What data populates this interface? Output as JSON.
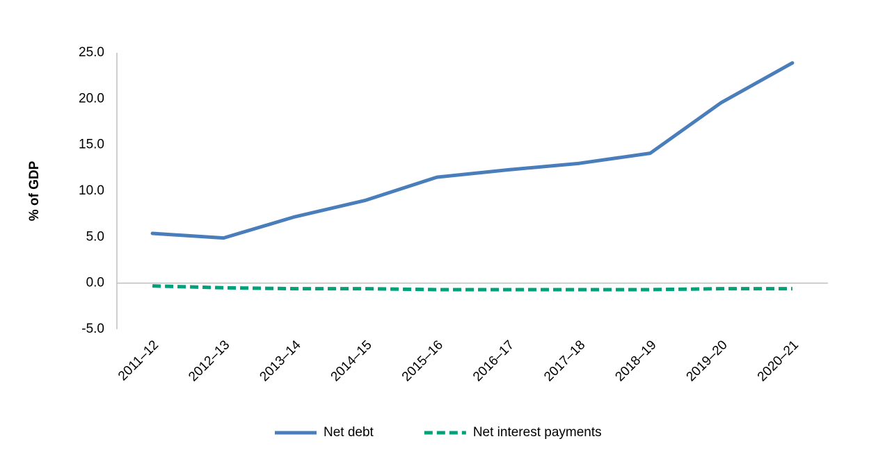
{
  "chart_data": {
    "type": "line",
    "y_label": "% of GDP",
    "categories": [
      "2011–12",
      "2012–13",
      "2013–14",
      "2014–15",
      "2015–16",
      "2016–17",
      "2017–18",
      "2018–19",
      "2019–20",
      "2020–21"
    ],
    "series": [
      {
        "name": "Net debt",
        "color": "#4a7ebb",
        "dash": false,
        "values": [
          5.4,
          4.9,
          7.2,
          9.0,
          11.5,
          12.3,
          13.0,
          14.1,
          19.6,
          23.9
        ]
      },
      {
        "name": "Net interest payments",
        "color": "#00a07a",
        "dash": true,
        "values": [
          -0.3,
          -0.5,
          -0.6,
          -0.6,
          -0.7,
          -0.7,
          -0.7,
          -0.7,
          -0.6,
          -0.6
        ]
      }
    ],
    "ylim": [
      -5,
      25
    ],
    "yticks": [
      {
        "value": -5,
        "label": "-5.0"
      },
      {
        "value": 0,
        "label": "0.0"
      },
      {
        "value": 5,
        "label": "5.0"
      },
      {
        "value": 10,
        "label": "10.0"
      },
      {
        "value": 15,
        "label": "15.0"
      },
      {
        "value": 20,
        "label": "20.0"
      },
      {
        "value": 25,
        "label": "25.0"
      }
    ],
    "grid": false,
    "legend": "bottom"
  }
}
